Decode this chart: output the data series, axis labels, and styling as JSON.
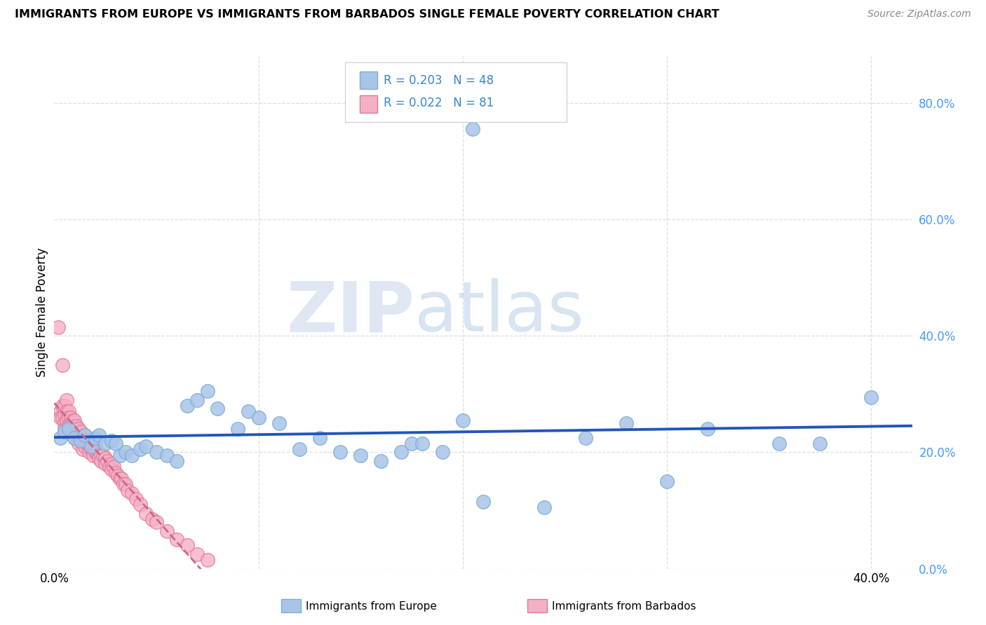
{
  "title": "IMMIGRANTS FROM EUROPE VS IMMIGRANTS FROM BARBADOS SINGLE FEMALE POVERTY CORRELATION CHART",
  "source": "Source: ZipAtlas.com",
  "ylabel": "Single Female Poverty",
  "xlim": [
    0.0,
    0.42
  ],
  "ylim": [
    0.0,
    0.88
  ],
  "yticks": [
    0.0,
    0.2,
    0.4,
    0.6,
    0.8
  ],
  "background_color": "#ffffff",
  "grid_color": "#dddddd",
  "europe_color": "#aac4e8",
  "europe_edge_color": "#7aaed6",
  "barbados_color": "#f5b0c5",
  "barbados_edge_color": "#e07898",
  "europe_label": "Immigrants from Europe",
  "barbados_label": "Immigrants from Barbados",
  "trend_europe_color": "#2255bb",
  "trend_barbados_color": "#cc6688",
  "watermark_zip": "ZIP",
  "watermark_atlas": "atlas",
  "europe_x": [
    0.003,
    0.005,
    0.007,
    0.01,
    0.013,
    0.015,
    0.018,
    0.02,
    0.022,
    0.025,
    0.028,
    0.03,
    0.032,
    0.035,
    0.038,
    0.042,
    0.045,
    0.05,
    0.055,
    0.06,
    0.065,
    0.07,
    0.075,
    0.08,
    0.09,
    0.095,
    0.1,
    0.11,
    0.12,
    0.13,
    0.14,
    0.15,
    0.16,
    0.17,
    0.175,
    0.18,
    0.19,
    0.2,
    0.205,
    0.21,
    0.24,
    0.26,
    0.28,
    0.3,
    0.32,
    0.355,
    0.375,
    0.4
  ],
  "europe_y": [
    0.225,
    0.235,
    0.24,
    0.225,
    0.22,
    0.23,
    0.21,
    0.225,
    0.23,
    0.215,
    0.22,
    0.215,
    0.195,
    0.2,
    0.195,
    0.205,
    0.21,
    0.2,
    0.195,
    0.185,
    0.28,
    0.29,
    0.305,
    0.275,
    0.24,
    0.27,
    0.26,
    0.25,
    0.205,
    0.225,
    0.2,
    0.195,
    0.185,
    0.2,
    0.215,
    0.215,
    0.2,
    0.255,
    0.755,
    0.115,
    0.105,
    0.225,
    0.25,
    0.15,
    0.24,
    0.215,
    0.215,
    0.295
  ],
  "barbados_x": [
    0.002,
    0.003,
    0.003,
    0.004,
    0.004,
    0.004,
    0.005,
    0.005,
    0.005,
    0.005,
    0.006,
    0.006,
    0.006,
    0.006,
    0.007,
    0.007,
    0.007,
    0.008,
    0.008,
    0.008,
    0.009,
    0.009,
    0.009,
    0.01,
    0.01,
    0.01,
    0.011,
    0.011,
    0.012,
    0.012,
    0.012,
    0.013,
    0.013,
    0.014,
    0.014,
    0.014,
    0.015,
    0.015,
    0.015,
    0.016,
    0.016,
    0.017,
    0.017,
    0.018,
    0.018,
    0.019,
    0.019,
    0.02,
    0.02,
    0.02,
    0.021,
    0.022,
    0.022,
    0.023,
    0.023,
    0.024,
    0.025,
    0.025,
    0.026,
    0.027,
    0.028,
    0.028,
    0.029,
    0.03,
    0.031,
    0.032,
    0.033,
    0.034,
    0.035,
    0.036,
    0.038,
    0.04,
    0.042,
    0.045,
    0.048,
    0.05,
    0.055,
    0.06,
    0.065,
    0.07,
    0.075
  ],
  "barbados_y": [
    0.415,
    0.27,
    0.26,
    0.35,
    0.28,
    0.26,
    0.28,
    0.265,
    0.25,
    0.24,
    0.29,
    0.27,
    0.255,
    0.24,
    0.27,
    0.26,
    0.245,
    0.26,
    0.25,
    0.235,
    0.255,
    0.245,
    0.23,
    0.255,
    0.24,
    0.225,
    0.245,
    0.23,
    0.24,
    0.225,
    0.215,
    0.235,
    0.22,
    0.22,
    0.215,
    0.205,
    0.23,
    0.22,
    0.21,
    0.22,
    0.215,
    0.21,
    0.2,
    0.21,
    0.205,
    0.2,
    0.195,
    0.215,
    0.205,
    0.2,
    0.2,
    0.195,
    0.19,
    0.195,
    0.185,
    0.195,
    0.19,
    0.18,
    0.185,
    0.175,
    0.18,
    0.17,
    0.175,
    0.165,
    0.16,
    0.155,
    0.155,
    0.145,
    0.145,
    0.135,
    0.13,
    0.12,
    0.11,
    0.095,
    0.085,
    0.08,
    0.065,
    0.05,
    0.04,
    0.025,
    0.015
  ]
}
